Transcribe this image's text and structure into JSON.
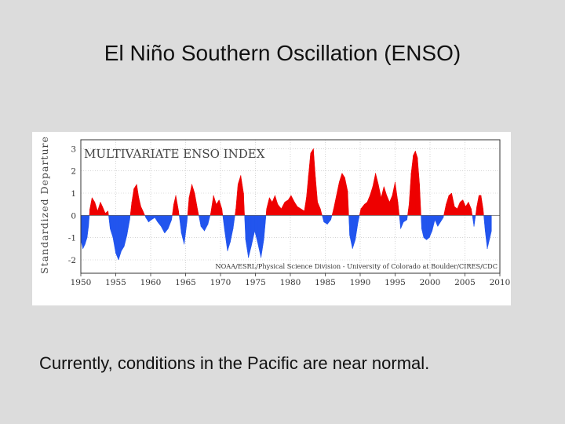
{
  "slide": {
    "title": "El Niño Southern Oscillation (ENSO)",
    "caption": "Currently, conditions in the Pacific are near normal."
  },
  "chart_data": {
    "type": "area",
    "title": "MULTIVARIATE ENSO INDEX",
    "ylabel": "Standardized Departure",
    "xlabel": "",
    "credit": "NOAA/ESRL/Physical Science Division - University of Colorado at Boulder/CIRES/CDC",
    "xlim": [
      1950,
      2010
    ],
    "ylim": [
      -2.6,
      3.4
    ],
    "xticks": [
      1950,
      1955,
      1960,
      1965,
      1970,
      1975,
      1980,
      1985,
      1990,
      1995,
      2000,
      2005,
      2010
    ],
    "yticks": [
      -2,
      -1,
      0,
      1,
      2,
      3
    ],
    "ytick_labels": [
      "-2",
      "-1",
      "0",
      "1",
      "2",
      "3"
    ],
    "colors": {
      "positive": "#ee0000",
      "negative": "#2255ee",
      "grid": "#bbbbbb"
    },
    "series": [
      {
        "name": "MEI",
        "x": [
          1950.0,
          1950.3,
          1950.6,
          1950.9,
          1951.1,
          1951.3,
          1951.6,
          1952.0,
          1952.4,
          1952.8,
          1953.1,
          1953.5,
          1953.9,
          1954.2,
          1954.6,
          1955.0,
          1955.4,
          1955.8,
          1956.2,
          1956.6,
          1957.0,
          1957.3,
          1957.6,
          1958.0,
          1958.3,
          1958.6,
          1958.9,
          1959.3,
          1959.7,
          1960.1,
          1960.6,
          1961.0,
          1961.5,
          1962.0,
          1962.5,
          1963.0,
          1963.3,
          1963.6,
          1964.0,
          1964.4,
          1964.8,
          1965.2,
          1965.5,
          1965.9,
          1966.3,
          1966.7,
          1967.2,
          1967.7,
          1968.2,
          1968.6,
          1969.0,
          1969.4,
          1969.8,
          1970.2,
          1970.6,
          1971.0,
          1971.4,
          1971.8,
          1972.2,
          1972.5,
          1972.9,
          1973.3,
          1973.6,
          1974.0,
          1974.4,
          1974.9,
          1975.3,
          1975.8,
          1976.2,
          1976.6,
          1977.0,
          1977.4,
          1977.8,
          1978.2,
          1978.7,
          1979.2,
          1979.7,
          1980.1,
          1980.6,
          1981.0,
          1981.5,
          1982.0,
          1982.3,
          1982.6,
          1982.9,
          1983.3,
          1983.6,
          1983.9,
          1984.3,
          1984.8,
          1985.3,
          1985.8,
          1986.2,
          1986.6,
          1987.0,
          1987.4,
          1987.8,
          1988.2,
          1988.5,
          1988.9,
          1989.3,
          1989.7,
          1990.1,
          1990.6,
          1991.0,
          1991.4,
          1991.8,
          1992.2,
          1992.6,
          1993.0,
          1993.4,
          1993.8,
          1994.2,
          1994.6,
          1995.0,
          1995.4,
          1995.8,
          1996.2,
          1996.7,
          1997.0,
          1997.3,
          1997.6,
          1997.9,
          1998.2,
          1998.5,
          1998.8,
          1999.1,
          1999.5,
          1999.9,
          2000.3,
          2000.7,
          2001.1,
          2001.5,
          2001.9,
          2002.3,
          2002.7,
          2003.1,
          2003.5,
          2003.9,
          2004.3,
          2004.7,
          2005.1,
          2005.5,
          2005.9,
          2006.3,
          2006.7,
          2007.0,
          2007.3,
          2007.6,
          2007.9,
          2008.2,
          2008.5,
          2008.8
        ],
        "y": [
          -1.1,
          -1.5,
          -1.3,
          -1.0,
          -0.5,
          0.3,
          0.8,
          0.6,
          0.2,
          0.6,
          0.4,
          0.1,
          0.2,
          -0.6,
          -1.0,
          -1.7,
          -2.0,
          -1.6,
          -1.4,
          -0.9,
          -0.2,
          0.6,
          1.2,
          1.4,
          0.8,
          0.4,
          0.2,
          -0.1,
          -0.3,
          -0.2,
          -0.1,
          -0.3,
          -0.5,
          -0.8,
          -0.6,
          -0.2,
          0.5,
          0.9,
          0.2,
          -0.8,
          -1.3,
          -0.3,
          0.8,
          1.4,
          1.0,
          0.3,
          -0.5,
          -0.7,
          -0.4,
          0.1,
          0.9,
          0.5,
          0.7,
          0.3,
          -0.7,
          -1.6,
          -1.2,
          -0.6,
          0.3,
          1.4,
          1.8,
          1.0,
          -1.1,
          -1.9,
          -1.4,
          -0.7,
          -1.2,
          -1.9,
          -1.1,
          0.3,
          0.8,
          0.6,
          0.9,
          0.5,
          0.3,
          0.6,
          0.7,
          0.9,
          0.6,
          0.4,
          0.3,
          0.2,
          0.8,
          1.8,
          2.8,
          3.0,
          1.7,
          0.6,
          0.3,
          -0.3,
          -0.4,
          -0.2,
          0.3,
          0.9,
          1.5,
          1.9,
          1.7,
          1.1,
          -0.9,
          -1.5,
          -1.1,
          -0.3,
          0.3,
          0.5,
          0.6,
          0.9,
          1.3,
          1.9,
          1.4,
          0.8,
          1.3,
          0.9,
          0.6,
          0.9,
          1.5,
          0.6,
          -0.6,
          -0.3,
          -0.2,
          0.5,
          1.9,
          2.7,
          2.9,
          2.6,
          1.4,
          -0.6,
          -1.0,
          -1.1,
          -1.0,
          -0.7,
          -0.2,
          -0.5,
          -0.3,
          -0.1,
          0.5,
          0.9,
          1.0,
          0.4,
          0.3,
          0.6,
          0.7,
          0.4,
          0.6,
          0.3,
          -0.5,
          0.4,
          0.9,
          0.9,
          0.3,
          -0.7,
          -1.5,
          -1.1,
          -0.7
        ]
      }
    ]
  }
}
